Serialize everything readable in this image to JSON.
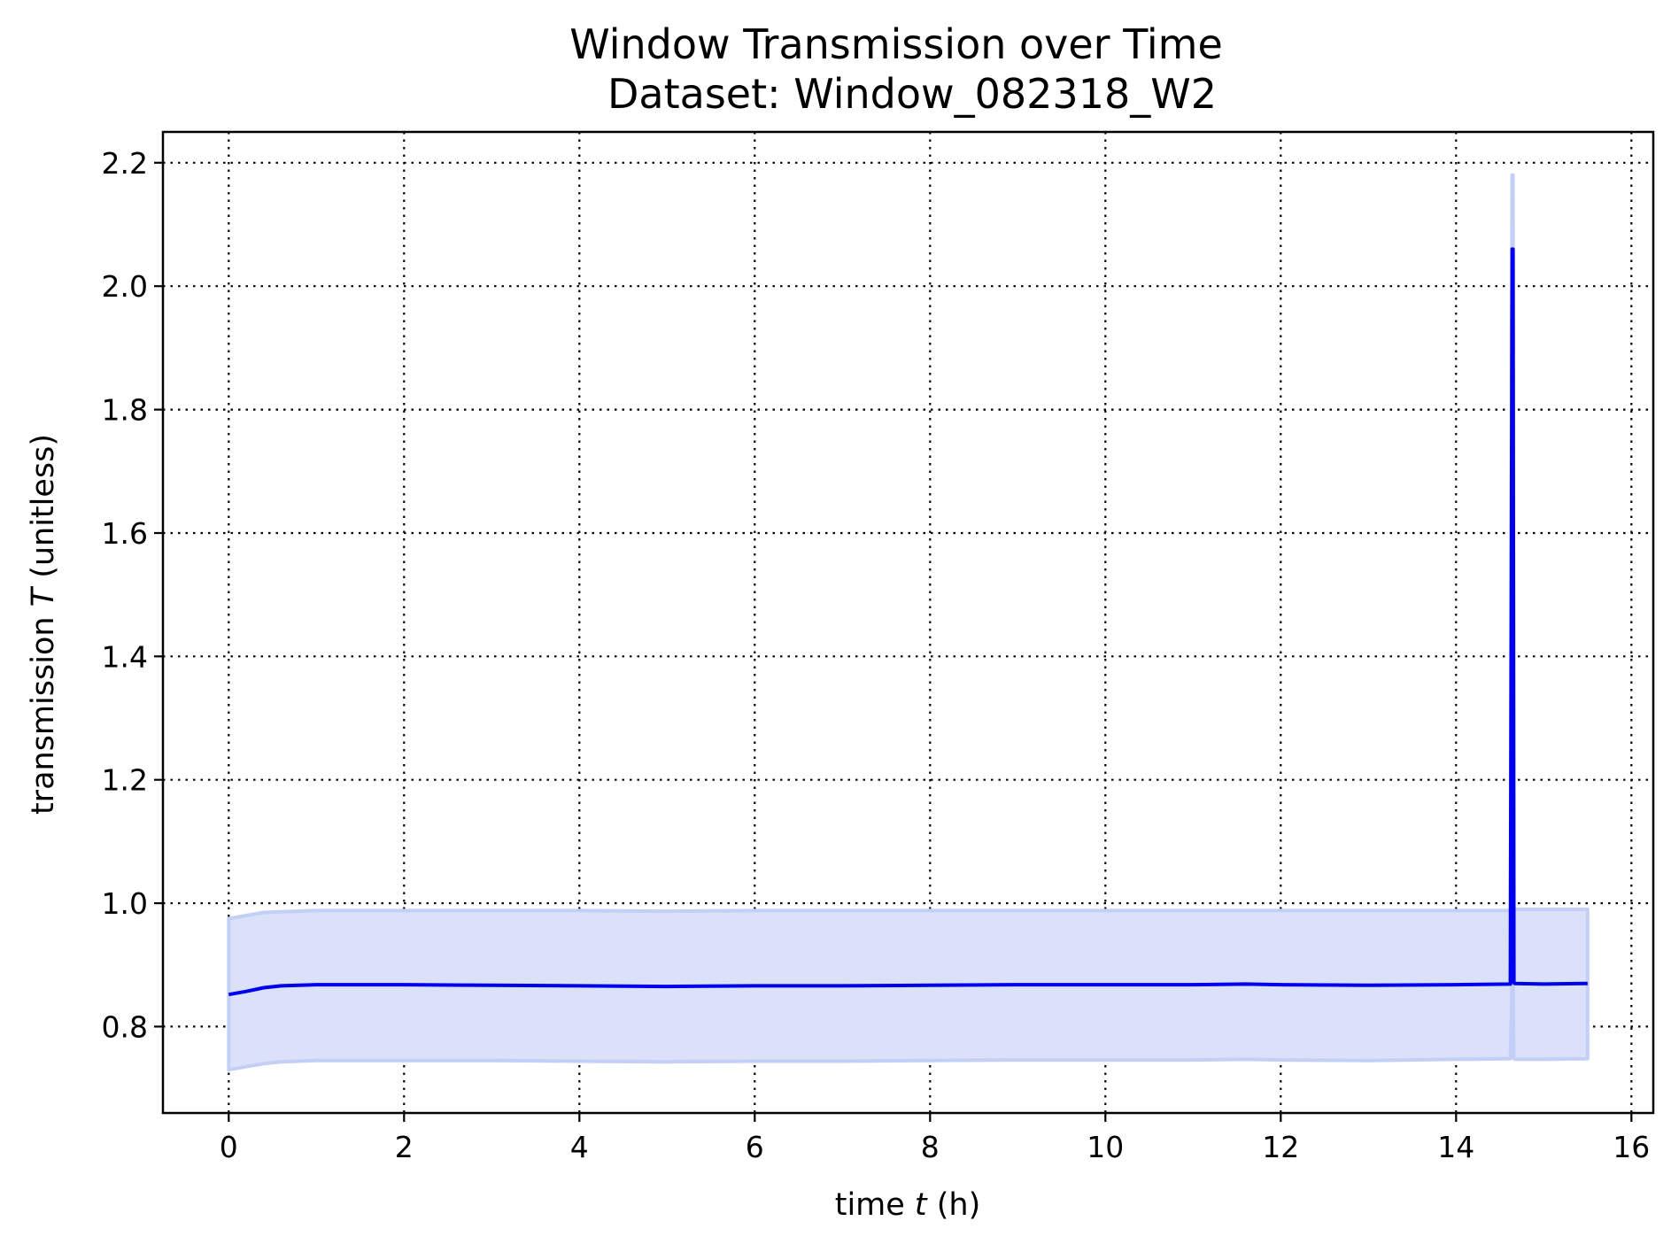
{
  "chart_data": {
    "type": "line",
    "title": "Window Transmission over Time",
    "subtitle": "Dataset: Window_082318_W2",
    "xlabel_prefix": "time ",
    "xlabel_var": "t",
    "xlabel_unit": " (h)",
    "ylabel_prefix": "transmission ",
    "ylabel_var": "T",
    "ylabel_unit": " (unitless)",
    "xlim": [
      -0.75,
      16.25
    ],
    "ylim": [
      0.66,
      2.25
    ],
    "xticks": [
      0,
      2,
      4,
      6,
      8,
      10,
      12,
      14,
      16
    ],
    "xtick_labels": [
      "0",
      "2",
      "4",
      "6",
      "8",
      "10",
      "12",
      "14",
      "16"
    ],
    "yticks": [
      0.8,
      1.0,
      1.2,
      1.4,
      1.6,
      1.8,
      2.0,
      2.2
    ],
    "ytick_labels": [
      "0.8",
      "1.0",
      "1.2",
      "1.4",
      "1.6",
      "1.8",
      "2.0",
      "2.2"
    ],
    "grid": true,
    "colors": {
      "line": "#0000ee",
      "band_fill": "#dae1f8",
      "band_edge": "#c3cff6"
    },
    "series": [
      {
        "x": [
          0.0,
          0.2,
          0.4,
          0.6,
          1.0,
          2.0,
          3.0,
          4.0,
          5.0,
          6.0,
          7.0,
          8.0,
          9.0,
          10.0,
          11.0,
          11.6,
          12.0,
          13.0,
          14.0,
          14.62,
          14.64,
          14.65,
          14.66,
          14.67,
          15.0,
          15.5
        ],
        "y": [
          0.852,
          0.857,
          0.863,
          0.866,
          0.868,
          0.868,
          0.867,
          0.866,
          0.865,
          0.866,
          0.866,
          0.867,
          0.868,
          0.868,
          0.868,
          0.869,
          0.868,
          0.867,
          0.868,
          0.869,
          2.06,
          2.06,
          0.871,
          0.87,
          0.869,
          0.87
        ],
        "band_upper": [
          0.975,
          0.98,
          0.985,
          0.986,
          0.988,
          0.988,
          0.988,
          0.988,
          0.987,
          0.988,
          0.988,
          0.988,
          0.988,
          0.988,
          0.988,
          0.988,
          0.988,
          0.988,
          0.988,
          0.988,
          2.18,
          2.18,
          0.99,
          0.99,
          0.99,
          0.99
        ],
        "band_lower": [
          0.73,
          0.735,
          0.74,
          0.743,
          0.745,
          0.745,
          0.745,
          0.744,
          0.743,
          0.744,
          0.744,
          0.745,
          0.746,
          0.746,
          0.746,
          0.747,
          0.746,
          0.745,
          0.747,
          0.748,
          0.87,
          0.87,
          0.748,
          0.747,
          0.747,
          0.748
        ]
      }
    ]
  }
}
